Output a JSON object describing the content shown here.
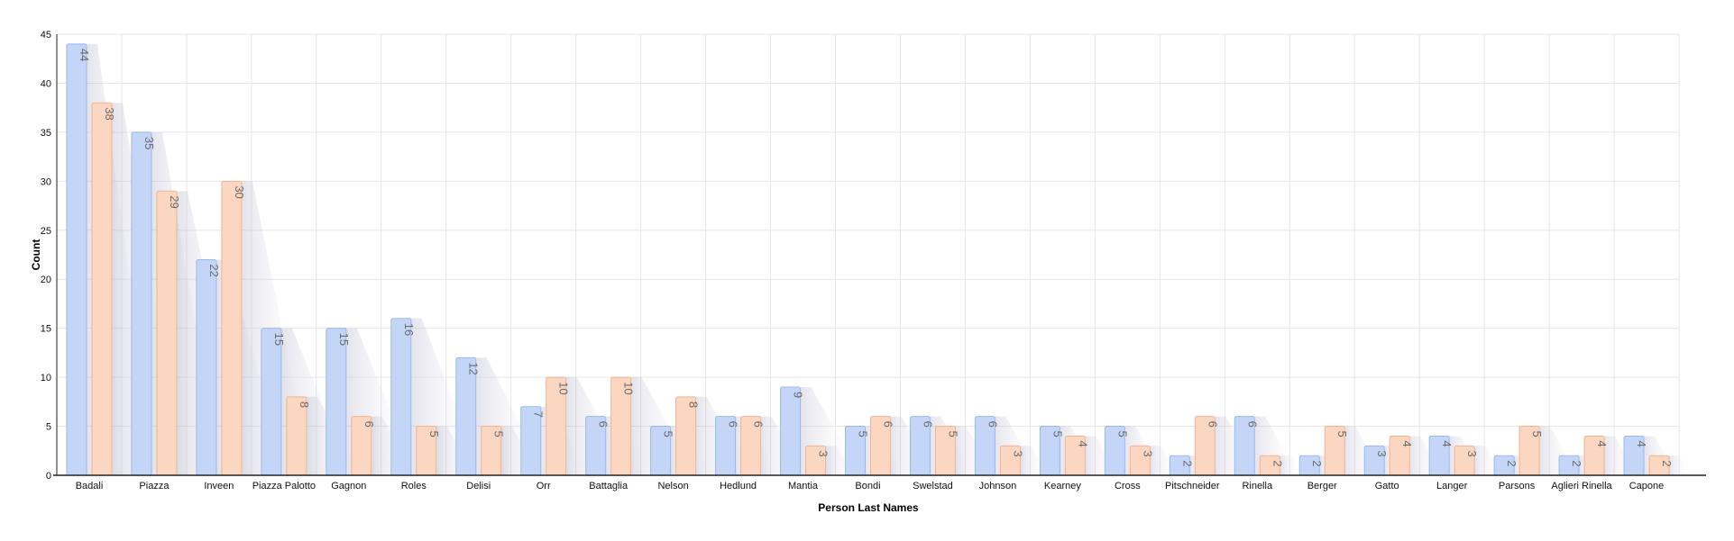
{
  "chart_data": {
    "type": "bar",
    "xlabel": "Person Last Names",
    "ylabel": "Count",
    "ylim": [
      0,
      45
    ],
    "yticks": [
      0,
      5,
      10,
      15,
      20,
      25,
      30,
      35,
      40,
      45
    ],
    "grid": true,
    "legend": "none",
    "categories": [
      "Badali",
      "Piazza",
      "Inveen",
      "Piazza Palotto",
      "Gagnon",
      "Roles",
      "Delisi",
      "Orr",
      "Battaglia",
      "Nelson",
      "Hedlund",
      "Mantia",
      "Bondi",
      "Swelstad",
      "Johnson",
      "Kearney",
      "Cross",
      "Pitschneider",
      "Rinella",
      "Berger",
      "Gatto",
      "Langer",
      "Parsons",
      "Aglieri Rinella",
      "Capone"
    ],
    "series": [
      {
        "values": [
          44,
          35,
          22,
          15,
          15,
          16,
          12,
          7,
          6,
          5,
          6,
          9,
          5,
          6,
          6,
          5,
          5,
          2,
          6,
          2,
          3,
          4,
          2,
          2,
          4
        ],
        "color": "#c3d6f7",
        "stroke": "#9bb8ec"
      },
      {
        "values": [
          38,
          29,
          30,
          8,
          6,
          5,
          5,
          10,
          10,
          8,
          6,
          3,
          6,
          5,
          3,
          4,
          3,
          6,
          2,
          5,
          4,
          3,
          5,
          4,
          2
        ],
        "color": "#fbd6c0",
        "stroke": "#efb493"
      }
    ]
  }
}
